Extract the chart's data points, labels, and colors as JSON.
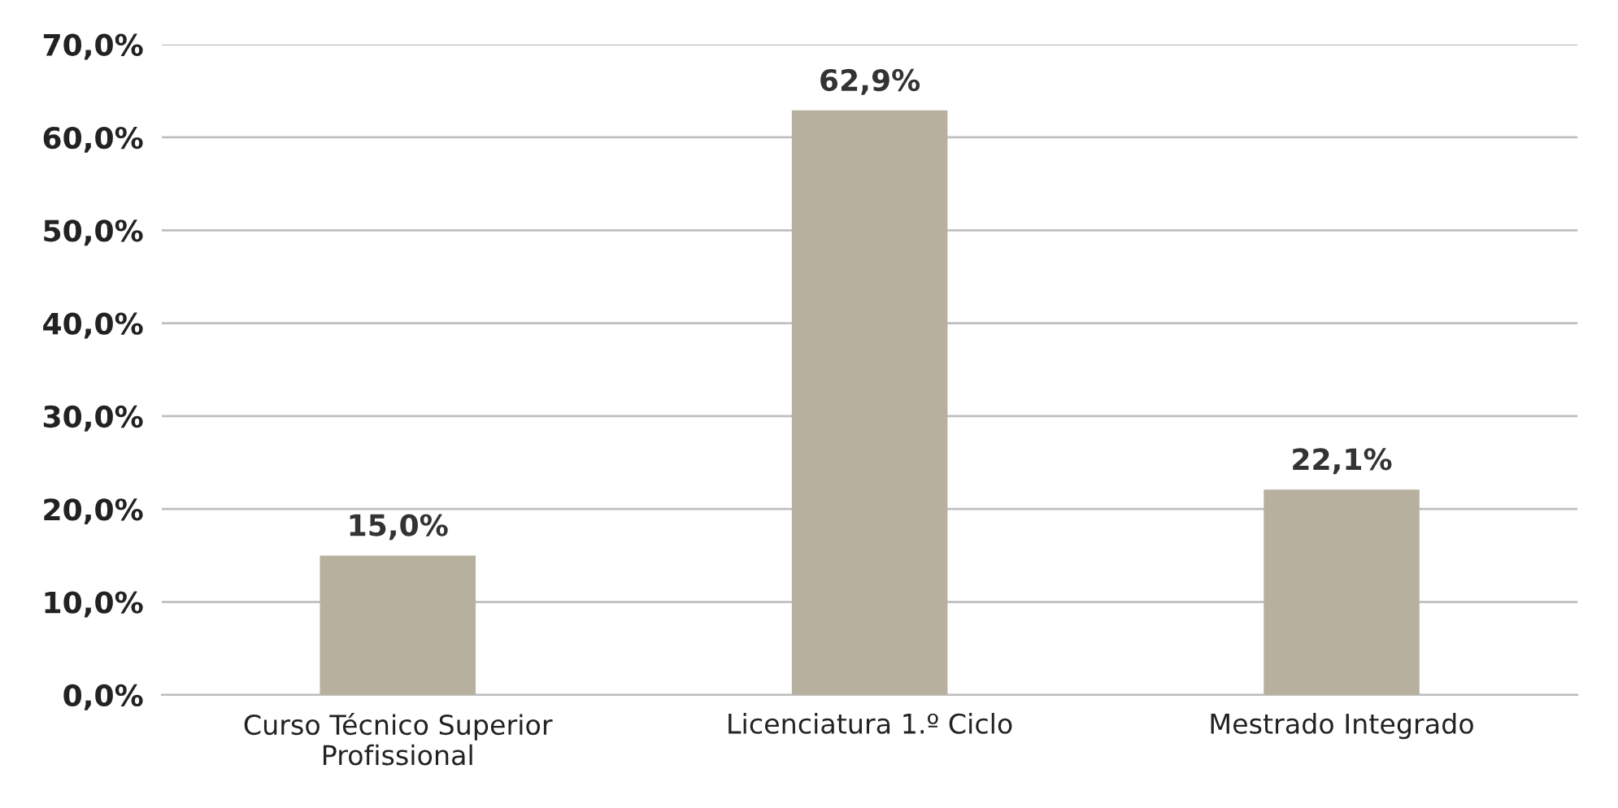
{
  "chart_data": {
    "type": "bar",
    "categories": [
      "Curso Técnico Superior\nProfissional",
      "Licenciatura 1.º Ciclo",
      "Mestrado Integrado"
    ],
    "values": [
      15.0,
      62.9,
      22.1
    ],
    "value_labels": [
      "15,0%",
      "62,9%",
      "22,1%"
    ],
    "color": "#b8b09f",
    "ylim": [
      0,
      70
    ],
    "yticks": [
      {
        "value": 0,
        "label": "0,0%"
      },
      {
        "value": 10,
        "label": "10,0%"
      },
      {
        "value": 20,
        "label": "20,0%"
      },
      {
        "value": 30,
        "label": "30,0%"
      },
      {
        "value": 40,
        "label": "40,0%"
      },
      {
        "value": 50,
        "label": "50,0%"
      },
      {
        "value": 60,
        "label": "60,0%"
      },
      {
        "value": 70,
        "label": "70,0%"
      }
    ],
    "grid": "y"
  }
}
